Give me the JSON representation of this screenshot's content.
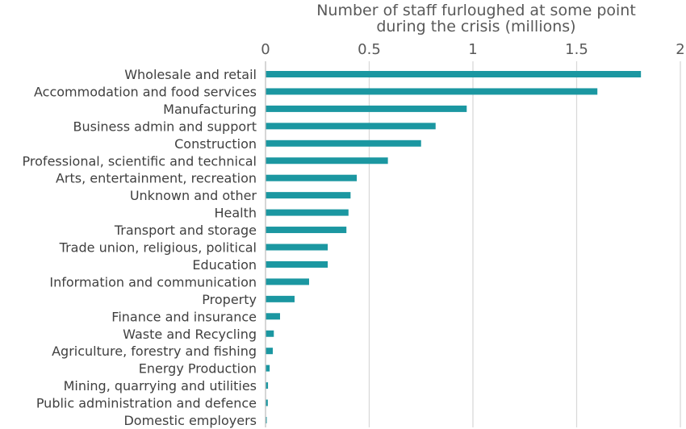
{
  "chart_data": {
    "type": "bar",
    "orientation": "horizontal",
    "title": "Number of staff furloughed at some point during the crisis (millions)",
    "title_lines": [
      "Number of staff furloughed at some point",
      "during the crisis (millions)"
    ],
    "categories": [
      "Wholesale and retail",
      "Accommodation and food services",
      "Manufacturing",
      "Business admin and support",
      "Construction",
      "Professional, scientific and technical",
      "Arts, entertainment, recreation",
      "Unknown and other",
      "Health",
      "Transport and storage",
      "Trade union, religious, political",
      "Education",
      "Information and communication",
      "Property",
      "Finance and insurance",
      "Waste and Recycling",
      "Agriculture, forestry and fishing",
      "Energy Production",
      "Mining, quarrying and utilities",
      "Public administration and defence",
      "Domestic employers"
    ],
    "values": [
      1.81,
      1.6,
      0.97,
      0.82,
      0.75,
      0.59,
      0.44,
      0.41,
      0.4,
      0.39,
      0.3,
      0.3,
      0.21,
      0.14,
      0.07,
      0.04,
      0.035,
      0.02,
      0.012,
      0.011,
      0.005
    ],
    "xlim": [
      0,
      2
    ],
    "xticks": [
      "0",
      "0.5",
      "1",
      "1.5",
      "2"
    ],
    "xtick_values": [
      0,
      0.5,
      1,
      1.5,
      2
    ],
    "grid": true,
    "axis_position": "top",
    "bar_color": "#1b97a1"
  }
}
